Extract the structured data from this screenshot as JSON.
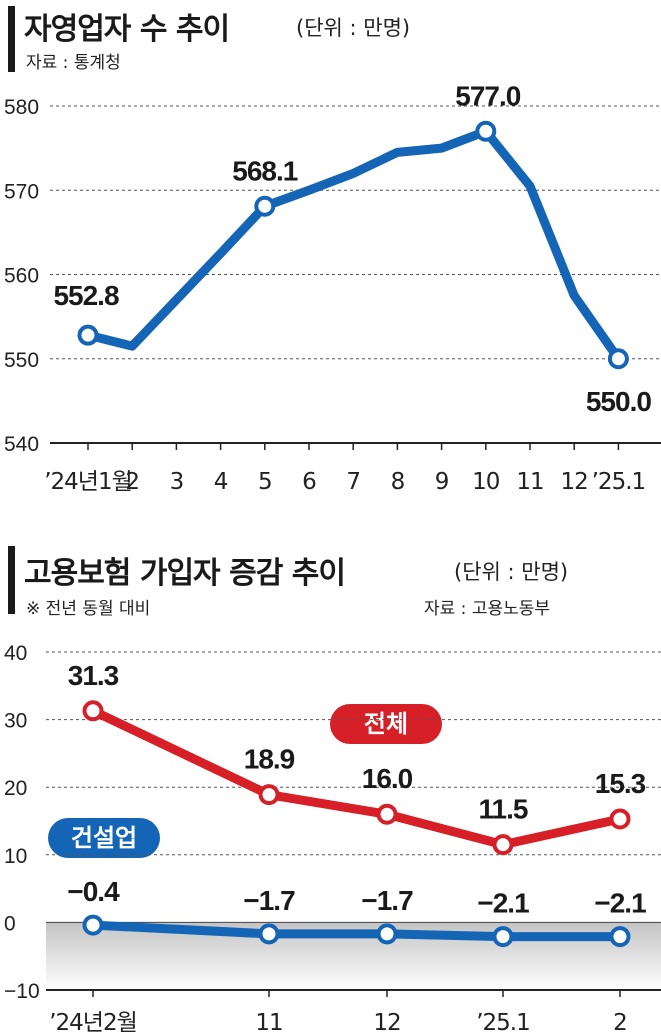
{
  "chart1": {
    "title": "자영업자 수 추이",
    "unit": "(단위 : 만명)",
    "source": "자료 : 통계청",
    "line_color": "#1565b7",
    "categories": [
      "’24년1월",
      "2",
      "3",
      "4",
      "5",
      "6",
      "7",
      "8",
      "9",
      "10",
      "11",
      "12",
      "’25.1"
    ],
    "values": [
      552.8,
      551.5,
      557.0,
      562.5,
      568.1,
      570.0,
      572.0,
      574.5,
      575.0,
      577.0,
      570.5,
      557.5,
      550.0
    ],
    "labeled_points": [
      {
        "index": 0,
        "label": "552.8"
      },
      {
        "index": 4,
        "label": "568.1"
      },
      {
        "index": 9,
        "label": "577.0"
      },
      {
        "index": 12,
        "label": "550.0"
      }
    ],
    "y_ticks": [
      "540",
      "550",
      "560",
      "570",
      "580"
    ]
  },
  "chart2": {
    "title": "고용보험 가입자 증감 추이",
    "unit": "(단위 : 만명)",
    "note": "※ 전년 동월 대비",
    "source": "자료 : 고용노동부",
    "categories": [
      "’24년2월",
      "11",
      "12",
      "’25.1",
      "2"
    ],
    "y_ticks": [
      "40",
      "30",
      "20",
      "10",
      "0",
      "−10"
    ],
    "series": [
      {
        "name": "전체",
        "color": "#d61f26",
        "values": [
          31.3,
          18.9,
          16.0,
          11.5,
          15.3
        ],
        "labels": [
          "31.3",
          "18.9",
          "16.0",
          "11.5",
          "15.3"
        ]
      },
      {
        "name": "건설업",
        "color": "#1565b7",
        "values": [
          -0.4,
          -1.7,
          -1.7,
          -2.1,
          -2.1
        ],
        "labels": [
          "−0.4",
          "−1.7",
          "−1.7",
          "−2.1",
          "−2.1"
        ]
      }
    ]
  },
  "chart_data": [
    {
      "type": "line",
      "title": "자영업자 수 추이",
      "unit": "(단위 : 만명)",
      "categories": [
        "’24년1월",
        "2",
        "3",
        "4",
        "5",
        "6",
        "7",
        "8",
        "9",
        "10",
        "11",
        "12",
        "’25.1"
      ],
      "values": [
        552.8,
        551.5,
        557.0,
        562.5,
        568.1,
        570.0,
        572.0,
        574.5,
        575.0,
        577.0,
        570.5,
        557.5,
        550.0
      ],
      "ylim": [
        540,
        580
      ],
      "grid": true
    },
    {
      "type": "line",
      "title": "고용보험 가입자 증감 추이",
      "unit": "(단위 : 만명)",
      "categories": [
        "’24년2월",
        "11",
        "12",
        "’25.1",
        "2"
      ],
      "series": [
        {
          "name": "전체",
          "values": [
            31.3,
            18.9,
            16.0,
            11.5,
            15.3
          ]
        },
        {
          "name": "건설업",
          "values": [
            -0.4,
            -1.7,
            -1.7,
            -2.1,
            -2.1
          ]
        }
      ],
      "ylim": [
        -10,
        40
      ],
      "grid": true
    }
  ]
}
